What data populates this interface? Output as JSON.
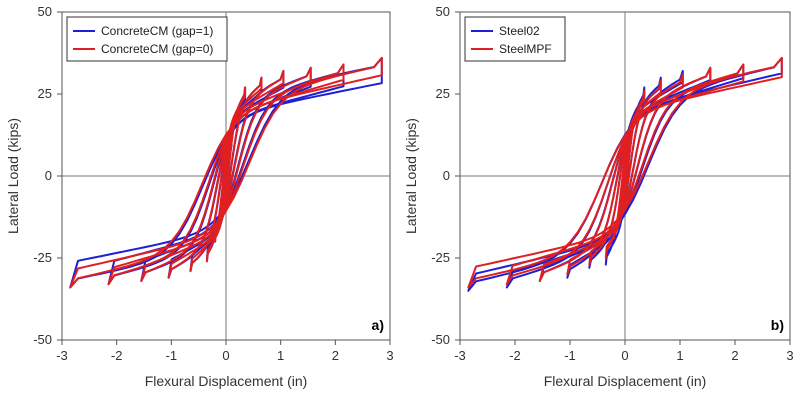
{
  "chart_data": [
    {
      "type": "line",
      "panel_label": "a)",
      "xlabel": "Flexural Displacement (in)",
      "ylabel": "Lateral Load (kips)",
      "xlim": [
        -3,
        3
      ],
      "ylim": [
        -50,
        50
      ],
      "xticks": [
        -3,
        -2,
        -1,
        0,
        1,
        2,
        3
      ],
      "yticks": [
        -50,
        -25,
        0,
        25,
        50
      ],
      "grid": false,
      "zero_lines": true,
      "legend_position": "top-left",
      "series": [
        {
          "name": "ConcreteCM (gap=1)",
          "color": "#1f1fd6",
          "amplitudes": [
            0.1,
            0.2,
            0.35,
            0.65,
            1.05,
            1.55,
            2.15,
            2.85
          ],
          "peak_loads": [
            12,
            20,
            27,
            30,
            32,
            33,
            34,
            36
          ],
          "neg_peak_loads": [
            -12,
            -20,
            -26,
            -29,
            -31,
            -32,
            -33,
            -34
          ],
          "residual_load": 9,
          "x": [
            -2.8,
            -2.2,
            -1.5,
            -1.0,
            -0.5,
            0.0,
            0.5,
            1.0,
            1.5,
            2.15,
            2.85
          ],
          "y_upper_branch": [
            -34,
            -16,
            -7,
            0,
            6,
            9,
            18,
            28,
            32,
            34,
            36
          ]
        },
        {
          "name": "ConcreteCM (gap=0)",
          "color": "#e02020",
          "amplitudes": [
            0.1,
            0.2,
            0.35,
            0.65,
            1.05,
            1.55,
            2.15,
            2.85
          ],
          "peak_loads": [
            12,
            20,
            27,
            30,
            32,
            33,
            34,
            36
          ],
          "neg_peak_loads": [
            -12,
            -20,
            -26,
            -29,
            -31,
            -32,
            -33,
            -34
          ],
          "residual_load": 5,
          "x": [
            -2.8,
            -2.2,
            -1.5,
            -1.0,
            -0.5,
            0.0,
            0.5,
            1.0,
            1.5,
            2.15,
            2.85
          ],
          "y_upper_branch": [
            -34,
            -18,
            -10,
            -3,
            3,
            5,
            17,
            27,
            32,
            34,
            36
          ]
        }
      ]
    },
    {
      "type": "line",
      "panel_label": "b)",
      "xlabel": "Flexural Displacement (in)",
      "ylabel": "Lateral Load (kips)",
      "xlim": [
        -3,
        3
      ],
      "ylim": [
        -50,
        50
      ],
      "xticks": [
        -3,
        -2,
        -1,
        0,
        1,
        2,
        3
      ],
      "yticks": [
        -50,
        -25,
        0,
        25,
        50
      ],
      "grid": false,
      "zero_lines": true,
      "legend_position": "top-left",
      "series": [
        {
          "name": "Steel02",
          "color": "#1f1fd6",
          "amplitudes": [
            0.1,
            0.2,
            0.35,
            0.65,
            1.05,
            1.55,
            2.15,
            2.85
          ],
          "peak_loads": [
            12,
            20,
            27,
            30,
            32,
            33,
            34,
            36
          ],
          "neg_peak_loads": [
            -12,
            -20,
            -27,
            -28,
            -31,
            -32,
            -34,
            -35
          ],
          "residual_load": 4,
          "x": [
            -2.8,
            -2.2,
            -1.5,
            -1.0,
            -0.5,
            0.0,
            0.5,
            1.0,
            1.5,
            2.15,
            2.85
          ],
          "y_upper_branch": [
            -35,
            -20,
            -12,
            -6,
            1,
            4,
            16,
            27,
            32,
            34,
            36
          ]
        },
        {
          "name": "SteelMPF",
          "color": "#e02020",
          "amplitudes": [
            0.1,
            0.2,
            0.35,
            0.65,
            1.05,
            1.55,
            2.15,
            2.85
          ],
          "peak_loads": [
            11,
            19,
            26,
            29,
            31,
            33,
            34,
            36
          ],
          "neg_peak_loads": [
            -11,
            -19,
            -25,
            -27,
            -30,
            -32,
            -33,
            -34
          ],
          "residual_load": 6,
          "x": [
            -2.8,
            -2.2,
            -1.5,
            -1.0,
            -0.5,
            0.0,
            0.5,
            1.0,
            1.5,
            2.15,
            2.85
          ],
          "y_upper_branch": [
            -34,
            -15,
            -6,
            0,
            4,
            6,
            17,
            27,
            32,
            34,
            36
          ]
        }
      ]
    }
  ]
}
